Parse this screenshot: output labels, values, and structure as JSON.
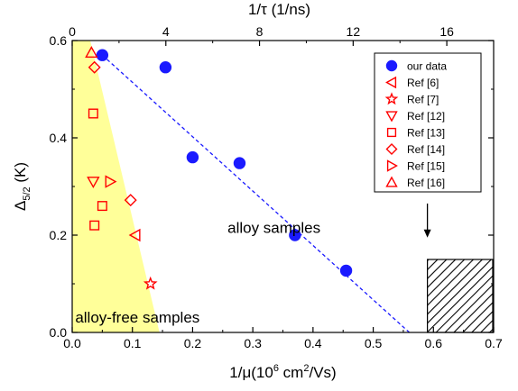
{
  "chart_data": {
    "type": "scatter",
    "x_axis": {
      "label_main": "1/μ(10",
      "label_sup1": "6",
      "label_mid": " cm",
      "label_sup2": "2",
      "label_end": "/Vs)",
      "range": [
        0.0,
        0.7
      ],
      "ticks": [
        "0.0",
        "0.1",
        "0.2",
        "0.3",
        "0.4",
        "0.5",
        "0.6",
        "0.7"
      ],
      "tick_values": [
        0.0,
        0.1,
        0.2,
        0.3,
        0.4,
        0.5,
        0.6,
        0.7
      ]
    },
    "top_axis": {
      "label": "1/τ (1/ns)",
      "range": [
        0,
        18
      ],
      "ticks": [
        "0",
        "4",
        "8",
        "12",
        "16"
      ],
      "tick_values": [
        0,
        4,
        8,
        12,
        16
      ]
    },
    "y_axis": {
      "label_main": "Δ",
      "label_sub": "5/2",
      "label_end": " (K)",
      "range": [
        0.0,
        0.6
      ],
      "ticks": [
        "0.0",
        "0.2",
        "0.4",
        "0.6"
      ],
      "tick_values": [
        0.0,
        0.2,
        0.4,
        0.6
      ]
    },
    "series": [
      {
        "name": "our data",
        "marker": "circle",
        "filled": true,
        "color": "#1a1aff",
        "points": [
          [
            0.05,
            0.57
          ],
          [
            0.155,
            0.545
          ],
          [
            0.2,
            0.36
          ],
          [
            0.278,
            0.348
          ],
          [
            0.37,
            0.2
          ],
          [
            0.455,
            0.127
          ]
        ]
      },
      {
        "name": "Ref  [6]",
        "marker": "triangle-left",
        "filled": false,
        "color": "#ff0000",
        "points": [
          [
            0.105,
            0.2
          ]
        ]
      },
      {
        "name": "Ref  [7]",
        "marker": "star",
        "filled": false,
        "color": "#ff0000",
        "points": [
          [
            0.13,
            0.1
          ]
        ]
      },
      {
        "name": "Ref [12]",
        "marker": "triangle-down",
        "filled": false,
        "color": "#ff0000",
        "points": [
          [
            0.035,
            0.31
          ]
        ]
      },
      {
        "name": "Ref [13]",
        "marker": "square",
        "filled": false,
        "color": "#ff0000",
        "points": [
          [
            0.035,
            0.45
          ],
          [
            0.05,
            0.26
          ],
          [
            0.037,
            0.22
          ]
        ]
      },
      {
        "name": "Ref [14]",
        "marker": "diamond",
        "filled": false,
        "color": "#ff0000",
        "points": [
          [
            0.037,
            0.545
          ],
          [
            0.097,
            0.272
          ]
        ]
      },
      {
        "name": "Ref [15]",
        "marker": "triangle-right",
        "filled": false,
        "color": "#ff0000",
        "points": [
          [
            0.063,
            0.31
          ]
        ]
      },
      {
        "name": "Ref [16]",
        "marker": "triangle-up",
        "filled": false,
        "color": "#ff0000",
        "points": [
          [
            0.032,
            0.575
          ]
        ]
      }
    ],
    "fit_line": {
      "style": "dashed",
      "color": "#1a1aff",
      "from": [
        0.05,
        0.57
      ],
      "to": [
        0.56,
        0.0
      ]
    },
    "shaded_region": {
      "color": "#ffff99",
      "polygon": [
        [
          0.0,
          0.6
        ],
        [
          0.03,
          0.6
        ],
        [
          0.145,
          0.0
        ],
        [
          0.0,
          0.0
        ]
      ]
    },
    "hatched_box": {
      "x": [
        0.59,
        0.7
      ],
      "y": [
        0.0,
        0.15
      ]
    },
    "arrow": {
      "x": 0.59,
      "from_y": 0.265,
      "to_y": 0.195
    },
    "annotations": [
      {
        "text": "alloy samples",
        "x": 0.258,
        "y": 0.205
      },
      {
        "text": "alloy-free samples",
        "x": 0.005,
        "y": 0.02
      }
    ],
    "legend": {
      "position": "top-right"
    }
  }
}
